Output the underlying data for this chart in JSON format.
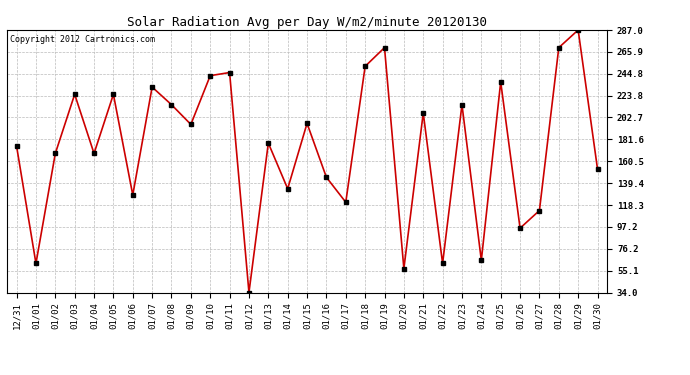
{
  "title": "Solar Radiation Avg per Day W/m2/minute 20120130",
  "copyright": "Copyright 2012 Cartronics.com",
  "labels": [
    "12/31",
    "01/01",
    "01/02",
    "01/03",
    "01/04",
    "01/05",
    "01/06",
    "01/07",
    "01/08",
    "01/09",
    "01/10",
    "01/11",
    "01/12",
    "01/13",
    "01/14",
    "01/15",
    "01/16",
    "01/17",
    "01/18",
    "01/19",
    "01/20",
    "01/21",
    "01/22",
    "01/23",
    "01/24",
    "01/25",
    "01/26",
    "01/27",
    "01/28",
    "01/29",
    "01/30"
  ],
  "values": [
    175.0,
    62.0,
    168.0,
    225.0,
    168.0,
    225.0,
    128.0,
    232.0,
    215.0,
    196.0,
    243.0,
    246.0,
    34.0,
    178.0,
    134.0,
    197.0,
    145.0,
    121.0,
    252.0,
    270.0,
    57.0,
    207.0,
    62.0,
    215.0,
    65.0,
    237.0,
    96.0,
    113.0,
    270.0,
    287.0,
    153.0
  ],
  "ymin": 34.0,
  "ymax": 287.0,
  "yticks": [
    34.0,
    55.1,
    76.2,
    97.2,
    118.3,
    139.4,
    160.5,
    181.6,
    202.7,
    223.8,
    244.8,
    265.9,
    287.0
  ],
  "line_color": "#cc0000",
  "marker_color": "#000000",
  "bg_color": "#ffffff",
  "grid_color": "#bbbbbb",
  "title_fontsize": 9,
  "copyright_fontsize": 6,
  "tick_fontsize": 6.5,
  "ytick_fontsize": 6.5
}
